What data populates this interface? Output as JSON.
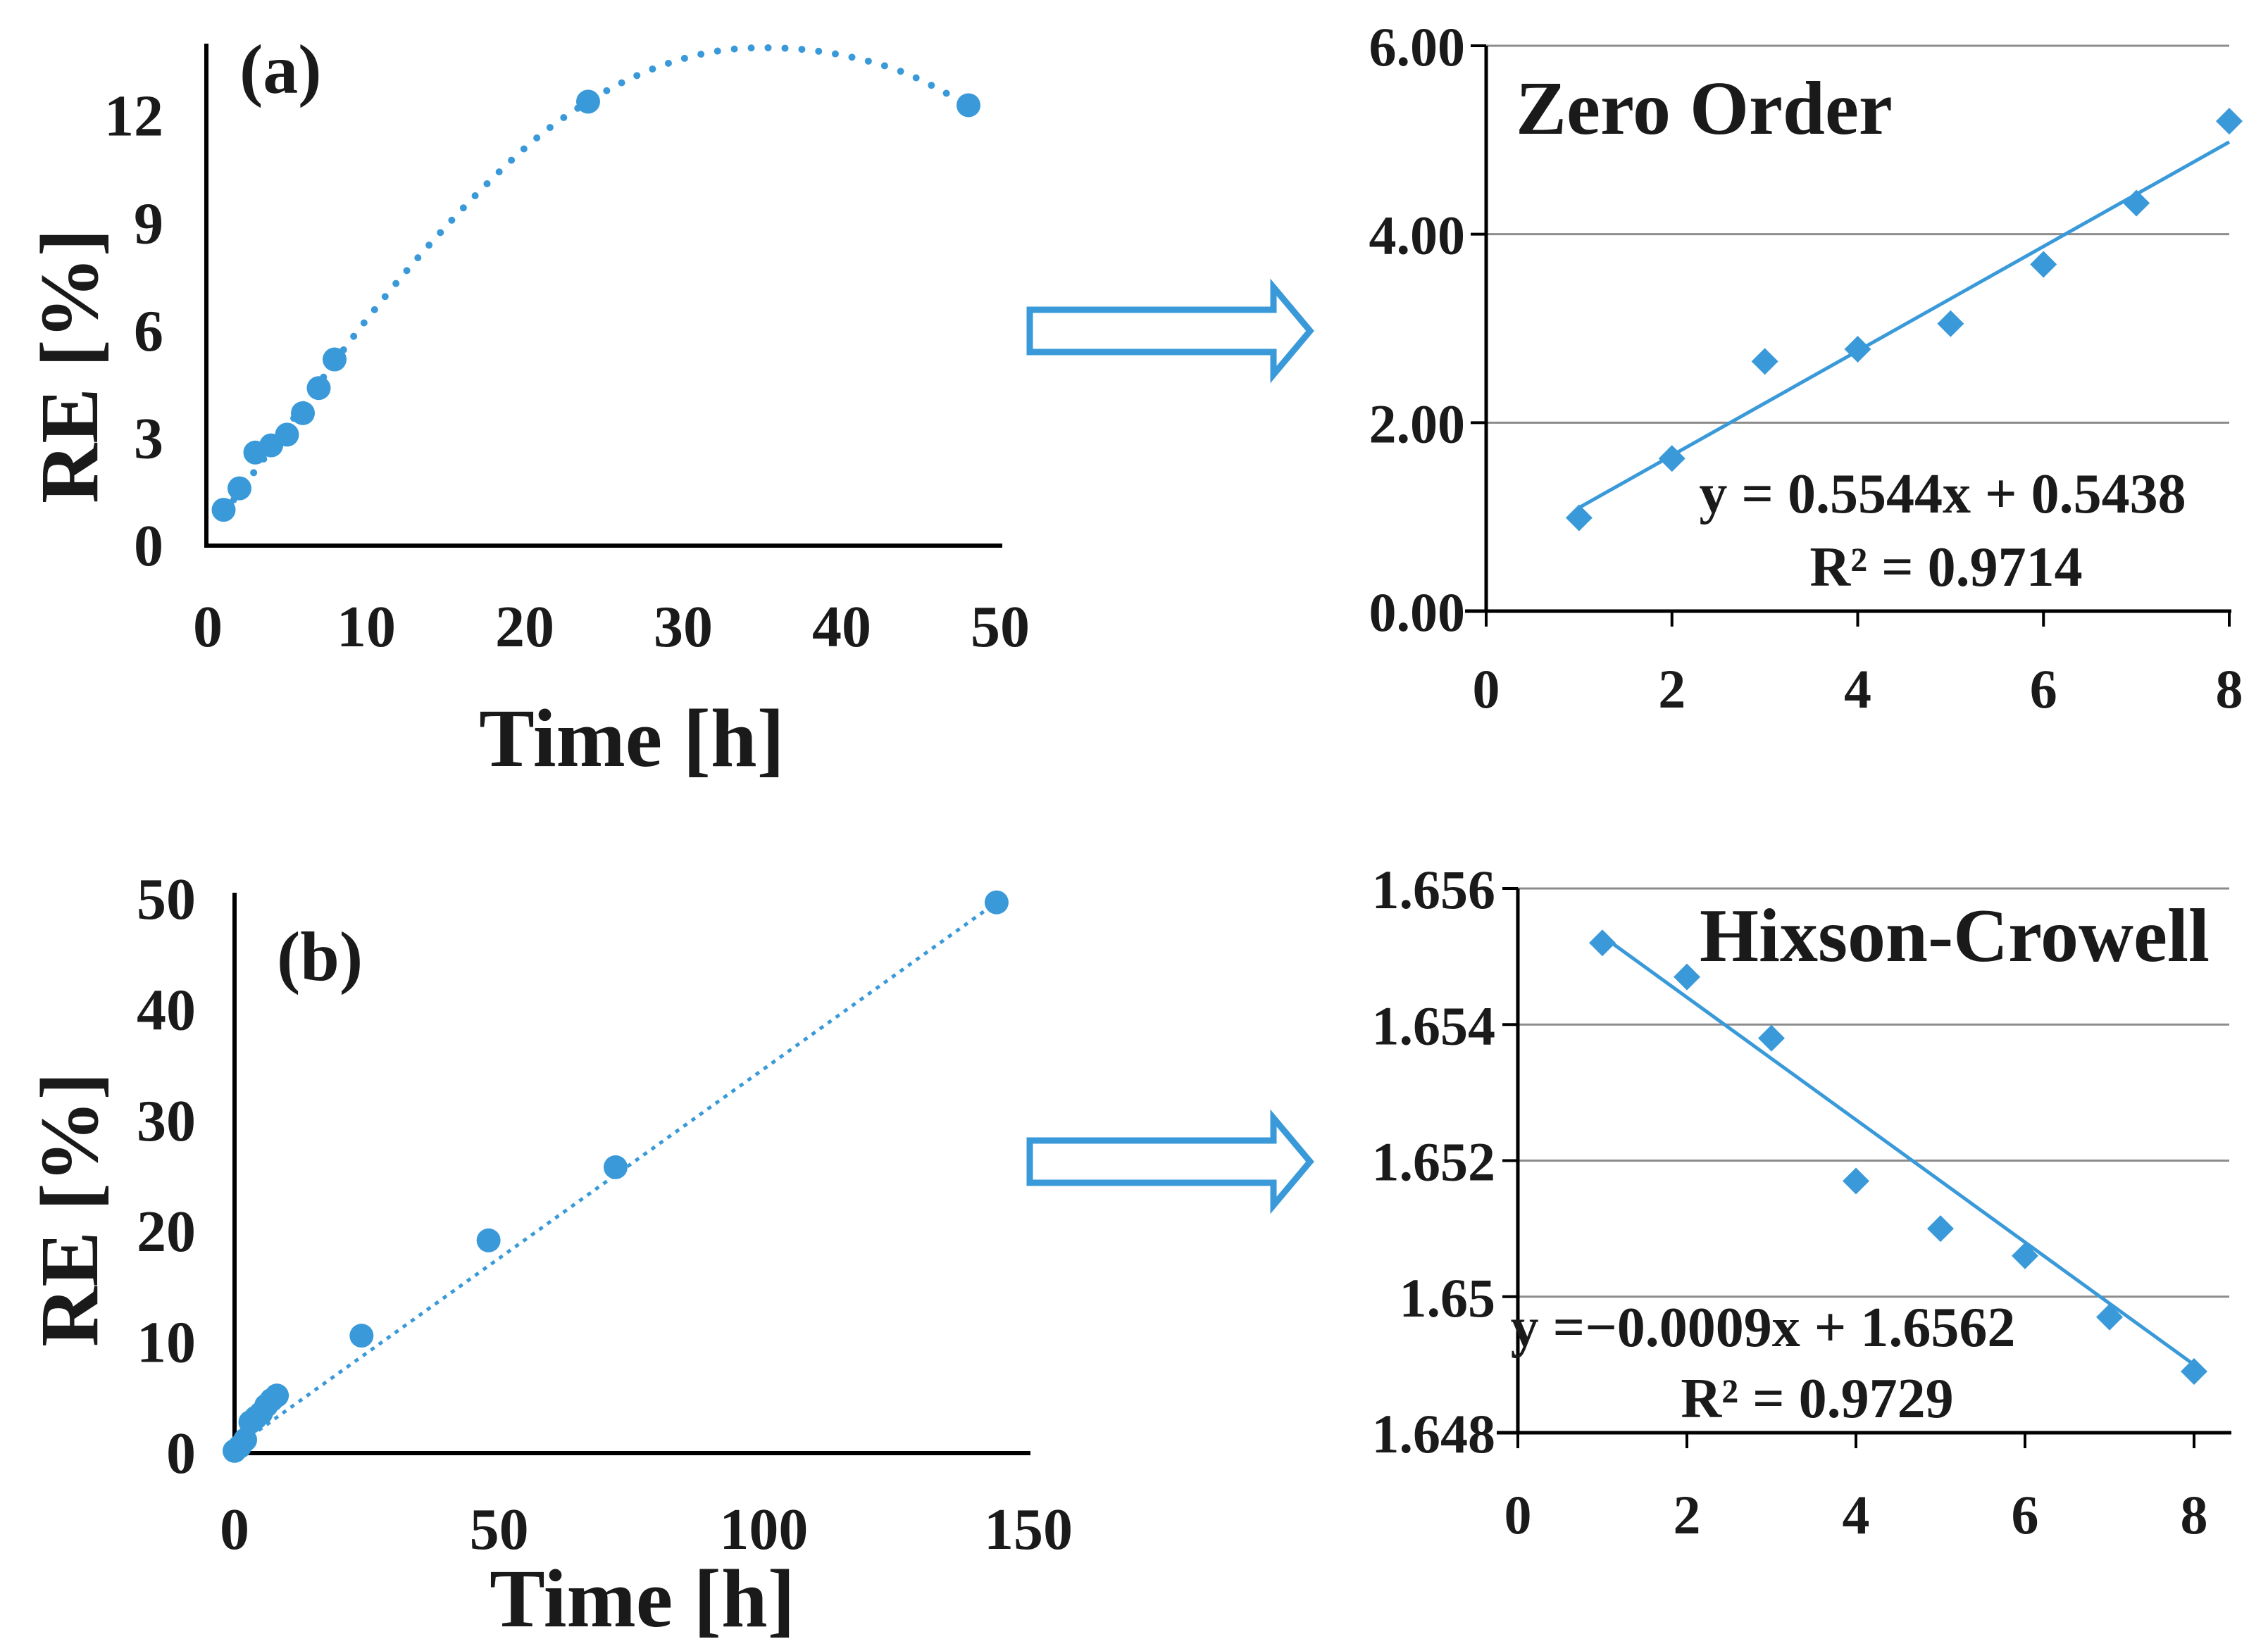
{
  "chart_data": [
    {
      "id": "a",
      "type": "scatter",
      "panel_label": "(a)",
      "xlabel": "Time [h]",
      "ylabel": "RE [%]",
      "xlim": [
        0,
        50
      ],
      "ylim": [
        0,
        14
      ],
      "xticks": [
        "0",
        "10",
        "20",
        "30",
        "40",
        "50"
      ],
      "yticks": [
        "0",
        "3",
        "6",
        "9",
        "12"
      ],
      "marker": "circle",
      "trendline": "polynomial-dotted",
      "series": [
        {
          "name": "RE",
          "x": [
            1,
            2,
            3,
            4,
            5,
            6,
            7,
            8,
            24,
            48
          ],
          "y": [
            1.0,
            1.6,
            2.6,
            2.8,
            3.1,
            3.7,
            4.4,
            5.2,
            12.4,
            12.3
          ]
        }
      ],
      "fit_x": [
        1,
        5,
        10,
        15,
        20,
        24,
        28,
        32,
        36,
        40,
        44,
        48
      ],
      "fit_y": [
        0.9,
        3.3,
        6.3,
        8.9,
        11.1,
        12.4,
        13.3,
        13.8,
        13.9,
        13.7,
        13.2,
        12.3
      ]
    },
    {
      "id": "zero-order",
      "type": "scatter",
      "title": "Zero Order",
      "xlim": [
        0,
        8
      ],
      "ylim": [
        0,
        6
      ],
      "xticks": [
        "0",
        "2",
        "4",
        "6",
        "8"
      ],
      "yticks": [
        "0.00",
        "2.00",
        "4.00",
        "6.00"
      ],
      "grid": true,
      "marker": "diamond",
      "series": [
        {
          "name": "Zero Order",
          "x": [
            1,
            2,
            3,
            4,
            5,
            6,
            7,
            8
          ],
          "y": [
            0.99,
            1.62,
            2.65,
            2.78,
            3.05,
            3.68,
            4.33,
            5.2
          ]
        }
      ],
      "fit": {
        "slope": 0.5544,
        "intercept": 0.5438,
        "x_range": [
          1,
          8
        ]
      },
      "equation": "y = 0.5544x + 0.5438",
      "r2_label": "R² = 0.9714"
    },
    {
      "id": "b",
      "type": "scatter",
      "panel_label": "(b)",
      "xlabel": "Time [h]",
      "ylabel": "RE [%]",
      "xlim": [
        0,
        150
      ],
      "ylim": [
        0,
        50
      ],
      "xticks": [
        "0",
        "50",
        "100",
        "150"
      ],
      "yticks": [
        "0",
        "10",
        "20",
        "30",
        "40",
        "50"
      ],
      "marker": "circle",
      "trendline": "linear-dotted",
      "series": [
        {
          "name": "RE",
          "x": [
            0,
            1,
            2,
            3,
            4,
            5,
            6,
            7,
            8,
            24,
            48,
            72,
            144
          ],
          "y": [
            0.2,
            0.6,
            1.2,
            2.8,
            3.2,
            3.6,
            4.3,
            4.8,
            5.2,
            10.6,
            19.2,
            25.8,
            49.7
          ]
        }
      ],
      "fit_x": [
        0,
        144
      ],
      "fit_y": [
        0.5,
        49.7
      ]
    },
    {
      "id": "hixson-crowell",
      "type": "scatter",
      "title": "Hixson-Crowell",
      "xlim": [
        0,
        8
      ],
      "ylim": [
        1.648,
        1.656
      ],
      "xticks": [
        "0",
        "2",
        "4",
        "6",
        "8"
      ],
      "yticks": [
        "1.648",
        "1.65",
        "1.652",
        "1.654",
        "1.656"
      ],
      "grid": true,
      "marker": "diamond",
      "series": [
        {
          "name": "Hixson-Crowell",
          "x": [
            1,
            2,
            3,
            4,
            5,
            6,
            7,
            8
          ],
          "y": [
            1.6552,
            1.6547,
            1.6538,
            1.6517,
            1.651,
            1.6506,
            1.6497,
            1.6489
          ]
        }
      ],
      "fit": {
        "slope": -0.0009,
        "intercept": 1.6562,
        "x_range": [
          1,
          8
        ]
      },
      "equation": "y =−0.0009x + 1.6562",
      "r2_label": "R² = 0.9729"
    }
  ],
  "colors": {
    "marker": "#3a9ad9",
    "line": "#3a9ad9",
    "grid": "#8c8c8c",
    "axis": "#000000",
    "arrow": "#3a9ad9"
  }
}
